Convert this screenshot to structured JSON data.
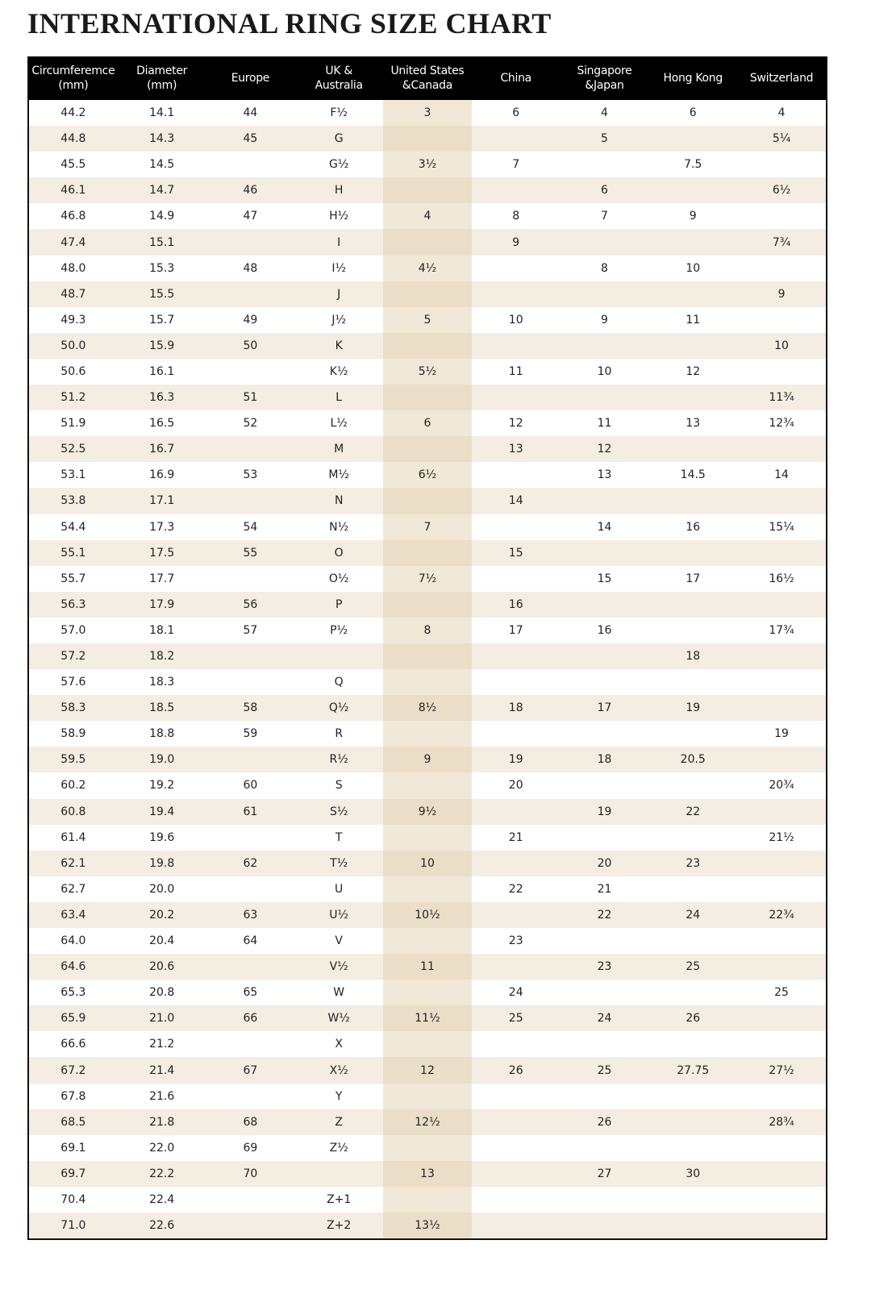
{
  "title": "INTERNATIONAL RING SIZE CHART",
  "columns": [
    "Circumferemce\n(mm)",
    "Diameter\n(mm)",
    "Europe",
    "UK &\nAustralia",
    "United States\n&Canada",
    "China",
    "Singapore\n&Japan",
    "Hong Kong",
    "Switzerland"
  ],
  "colors": {
    "header_bg": "#000000",
    "stripe": "#f4ede1",
    "us_column": "#f2e8d7"
  },
  "rows": [
    [
      "44.2",
      "14.1",
      "44",
      "F½",
      "3",
      "6",
      "4",
      "6",
      "4"
    ],
    [
      "44.8",
      "14.3",
      "45",
      "G",
      "",
      "",
      "5",
      "",
      "5¼"
    ],
    [
      "45.5",
      "14.5",
      "",
      "G½",
      "3½",
      "7",
      "",
      "7.5",
      ""
    ],
    [
      "46.1",
      "14.7",
      "46",
      "H",
      "",
      "",
      "6",
      "",
      "6½"
    ],
    [
      "46.8",
      "14.9",
      "47",
      "H½",
      "4",
      "8",
      "7",
      "9",
      ""
    ],
    [
      "47.4",
      "15.1",
      "",
      "I",
      "",
      "9",
      "",
      "",
      "7¾"
    ],
    [
      "48.0",
      "15.3",
      "48",
      "I½",
      "4½",
      "",
      "8",
      "10",
      ""
    ],
    [
      "48.7",
      "15.5",
      "",
      "J",
      "",
      "",
      "",
      "",
      "9"
    ],
    [
      "49.3",
      "15.7",
      "49",
      "J½",
      "5",
      "10",
      "9",
      "11",
      ""
    ],
    [
      "50.0",
      "15.9",
      "50",
      "K",
      "",
      "",
      "",
      "",
      "10"
    ],
    [
      "50.6",
      "16.1",
      "",
      "K½",
      "5½",
      "11",
      "10",
      "12",
      ""
    ],
    [
      "51.2",
      "16.3",
      "51",
      "L",
      "",
      "",
      "",
      "",
      "11¾"
    ],
    [
      "51.9",
      "16.5",
      "52",
      "L½",
      "6",
      "12",
      "11",
      "13",
      "12¾"
    ],
    [
      "52.5",
      "16.7",
      "",
      "M",
      "",
      "13",
      "12",
      "",
      ""
    ],
    [
      "53.1",
      "16.9",
      "53",
      "M½",
      "6½",
      "",
      "13",
      "14.5",
      "14"
    ],
    [
      "53.8",
      "17.1",
      "",
      "N",
      "",
      "14",
      "",
      "",
      ""
    ],
    [
      "54.4",
      "17.3",
      "54",
      "N½",
      "7",
      "",
      "14",
      "16",
      "15¼"
    ],
    [
      "55.1",
      "17.5",
      "55",
      "O",
      "",
      "15",
      "",
      "",
      ""
    ],
    [
      "55.7",
      "17.7",
      "",
      "O½",
      "7½",
      "",
      "15",
      "17",
      "16½"
    ],
    [
      "56.3",
      "17.9",
      "56",
      "P",
      "",
      "16",
      "",
      "",
      ""
    ],
    [
      "57.0",
      "18.1",
      "57",
      "P½",
      "8",
      "17",
      "16",
      "",
      "17¾"
    ],
    [
      "57.2",
      "18.2",
      "",
      "",
      "",
      "",
      "",
      "18",
      ""
    ],
    [
      "57.6",
      "18.3",
      "",
      "Q",
      "",
      "",
      "",
      "",
      ""
    ],
    [
      "58.3",
      "18.5",
      "58",
      "Q½",
      "8½",
      "18",
      "17",
      "19",
      ""
    ],
    [
      "58.9",
      "18.8",
      "59",
      "R",
      "",
      "",
      "",
      "",
      "19"
    ],
    [
      "59.5",
      "19.0",
      "",
      "R½",
      "9",
      "19",
      "18",
      "20.5",
      ""
    ],
    [
      "60.2",
      "19.2",
      "60",
      "S",
      "",
      "20",
      "",
      "",
      "20¾"
    ],
    [
      "60.8",
      "19.4",
      "61",
      "S½",
      "9½",
      "",
      "19",
      "22",
      ""
    ],
    [
      "61.4",
      "19.6",
      "",
      "T",
      "",
      "21",
      "",
      "",
      "21½"
    ],
    [
      "62.1",
      "19.8",
      "62",
      "T½",
      "10",
      "",
      "20",
      "23",
      ""
    ],
    [
      "62.7",
      "20.0",
      "",
      "U",
      "",
      "22",
      "21",
      "",
      ""
    ],
    [
      "63.4",
      "20.2",
      "63",
      "U½",
      "10½",
      "",
      "22",
      "24",
      "22¾"
    ],
    [
      "64.0",
      "20.4",
      "64",
      "V",
      "",
      "23",
      "",
      "",
      ""
    ],
    [
      "64.6",
      "20.6",
      "",
      "V½",
      "11",
      "",
      "23",
      "25",
      ""
    ],
    [
      "65.3",
      "20.8",
      "65",
      "W",
      "",
      "24",
      "",
      "",
      "25"
    ],
    [
      "65.9",
      "21.0",
      "66",
      "W½",
      "11½",
      "25",
      "24",
      "26",
      ""
    ],
    [
      "66.6",
      "21.2",
      "",
      "X",
      "",
      "",
      "",
      "",
      ""
    ],
    [
      "67.2",
      "21.4",
      "67",
      "X½",
      "12",
      "26",
      "25",
      "27.75",
      "27½"
    ],
    [
      "67.8",
      "21.6",
      "",
      "Y",
      "",
      "",
      "",
      "",
      ""
    ],
    [
      "68.5",
      "21.8",
      "68",
      "Z",
      "12½",
      "",
      "26",
      "",
      "28¾"
    ],
    [
      "69.1",
      "22.0",
      "69",
      "Z½",
      "",
      "",
      "",
      "",
      ""
    ],
    [
      "69.7",
      "22.2",
      "70",
      "",
      "13",
      "",
      "27",
      "30",
      ""
    ],
    [
      "70.4",
      "22.4",
      "",
      "Z+1",
      "",
      "",
      "",
      "",
      ""
    ],
    [
      "71.0",
      "22.6",
      "",
      "Z+2",
      "13½",
      "",
      "",
      "",
      ""
    ]
  ]
}
